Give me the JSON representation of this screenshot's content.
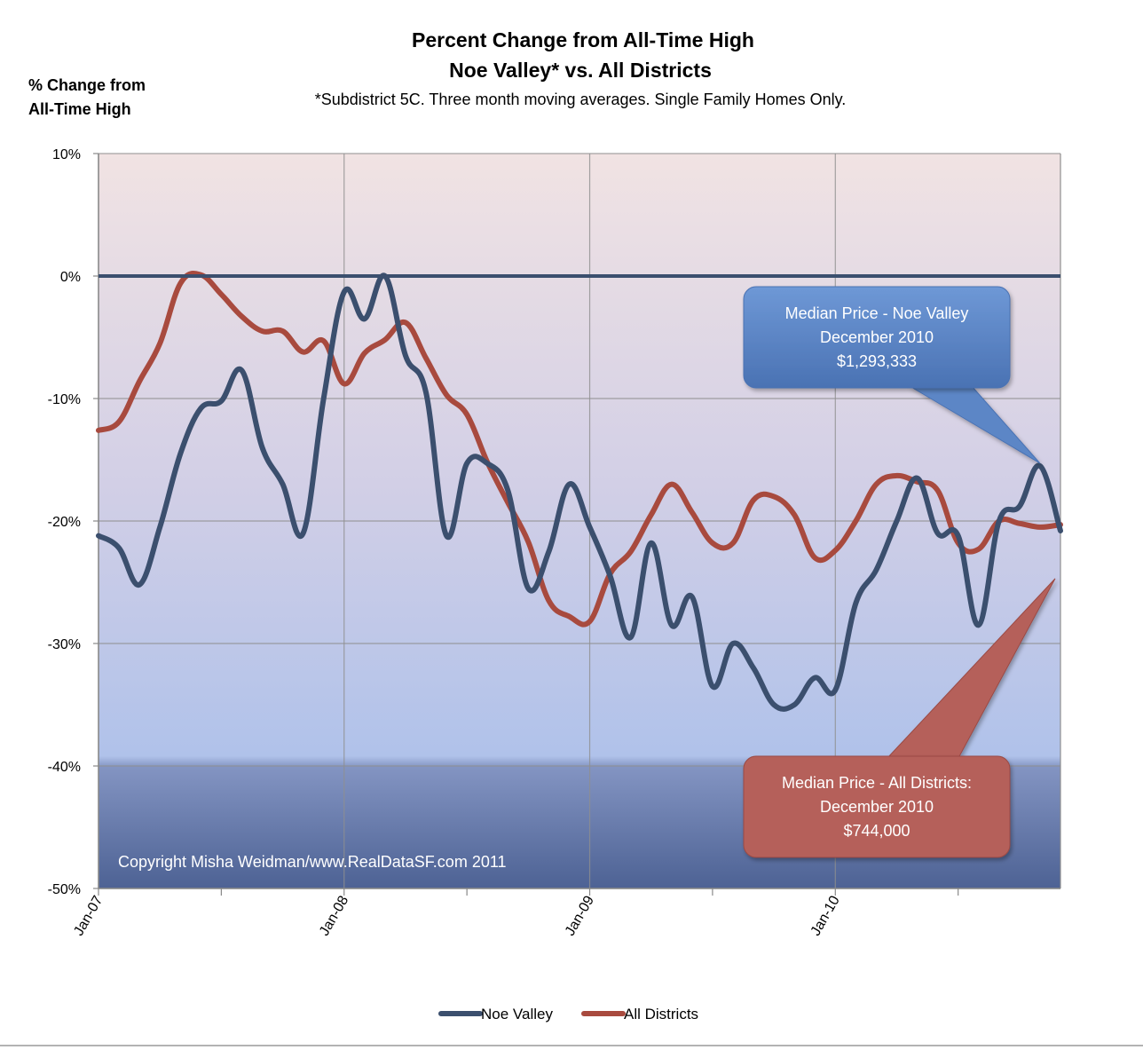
{
  "chart_data": {
    "type": "line",
    "title": [
      "Percent Change from All-Time High",
      "Noe Valley*  vs.  All Districts"
    ],
    "subtitle": "*Subdistrict 5C.  Three month moving averages.  Single Family Homes Only.",
    "ylabel": [
      "% Change from",
      "All-Time High"
    ],
    "xlabel": "",
    "ylim": [
      -50,
      10
    ],
    "yticks": [
      10,
      0,
      -10,
      -20,
      -30,
      -40,
      -50
    ],
    "ytick_labels": [
      "10%",
      "0%",
      "-10%",
      "-20%",
      "-30%",
      "-40%",
      "-50%"
    ],
    "xticks": [
      0,
      12,
      24,
      36
    ],
    "xtick_labels": [
      "Jan-07",
      "Jan-08",
      "Jan-09",
      "Jan-10"
    ],
    "x_range": [
      0,
      47
    ],
    "x_unit": "months from Jan-07",
    "grid": true,
    "reference_line": 0,
    "legend_position": "bottom",
    "colors": {
      "noe_valley": "#3b4f6e",
      "all_districts": "#a84a3e",
      "callout_blue": "#5b86c6",
      "callout_red": "#b5605a",
      "background_top": "#f0e2e2",
      "background_mid": "#b6c5e8",
      "background_bottom": "#4f6494"
    },
    "series": [
      {
        "name": "Noe Valley",
        "values": [
          -21.2,
          -22.2,
          -25.2,
          -20.5,
          -14.5,
          -10.8,
          -10.2,
          -7.7,
          -14,
          -17,
          -21,
          -10,
          -1.3,
          -3.5,
          0,
          -6.5,
          -9.5,
          -21.2,
          -15.3,
          -15.3,
          -17.5,
          -25.5,
          -22.5,
          -17,
          -20.5,
          -24.5,
          -29.5,
          -21.8,
          -28.5,
          -26.2,
          -33.5,
          -30,
          -32,
          -35,
          -35,
          -32.8,
          -33.8,
          -26.7,
          -24,
          -20,
          -16.5,
          -21,
          -21.2,
          -28.5,
          -20,
          -18.8,
          -15.5,
          -20.8
        ]
      },
      {
        "name": "All Districts",
        "values": [
          -12.6,
          -11.9,
          -8.6,
          -5.5,
          -0.6,
          0.1,
          -1.5,
          -3.3,
          -4.5,
          -4.5,
          -6.2,
          -5.3,
          -8.8,
          -6.3,
          -5.2,
          -3.8,
          -6.7,
          -9.7,
          -11.3,
          -15.2,
          -18.5,
          -21.7,
          -26.5,
          -27.8,
          -28.2,
          -24.3,
          -22.5,
          -19.5,
          -17,
          -19.3,
          -21.8,
          -21.8,
          -18.3,
          -18,
          -19.5,
          -23,
          -22.4,
          -20,
          -17,
          -16.3,
          -16.8,
          -17.5,
          -21.8,
          -22.3,
          -20,
          -20.2,
          -20.5,
          -20.3
        ]
      }
    ],
    "annotations": [
      {
        "target": "Noe Valley",
        "lines": [
          "Median Price  - Noe Valley",
          "December 2010",
          "$1,293,333"
        ]
      },
      {
        "target": "All Districts",
        "lines": [
          "Median Price -  All Districts:",
          "December 2010",
          "$744,000"
        ]
      }
    ],
    "copyright": "Copyright Misha Weidman/www.RealDataSF.com 2011"
  }
}
